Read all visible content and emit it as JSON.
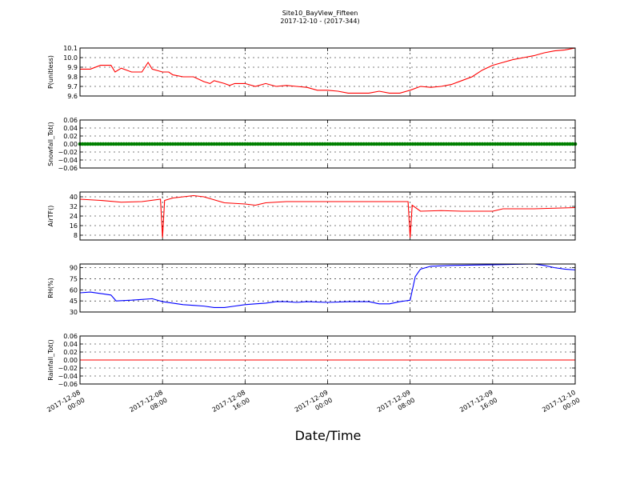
{
  "figure": {
    "title_line1": "Site10_BayView_Fifteen",
    "title_line2": "2017-12-10 - (2017-344)",
    "xlabel": "Date/Time"
  },
  "chart_data": [
    {
      "type": "line",
      "ylabel": "P(unitless)",
      "color": "#ff0000",
      "ylim": [
        9.6,
        10.1
      ],
      "yticks": [
        9.6,
        9.7,
        9.8,
        9.9,
        10.0,
        10.1
      ],
      "ytick_labels": [
        "9.6",
        "9.7",
        "9.8",
        "9.9",
        "10.0",
        "10.1"
      ],
      "points": [
        [
          0,
          9.88
        ],
        [
          1,
          9.88
        ],
        [
          2,
          9.92
        ],
        [
          3,
          9.92
        ],
        [
          3.4,
          9.85
        ],
        [
          4,
          9.89
        ],
        [
          5,
          9.85
        ],
        [
          6,
          9.85
        ],
        [
          6.6,
          9.95
        ],
        [
          7,
          9.88
        ],
        [
          8,
          9.85
        ],
        [
          8.6,
          9.85
        ],
        [
          9,
          9.82
        ],
        [
          10,
          9.8
        ],
        [
          11,
          9.8
        ],
        [
          12,
          9.75
        ],
        [
          12.6,
          9.73
        ],
        [
          13,
          9.76
        ],
        [
          14,
          9.73
        ],
        [
          14.5,
          9.71
        ],
        [
          15,
          9.73
        ],
        [
          16,
          9.73
        ],
        [
          17,
          9.7
        ],
        [
          18,
          9.73
        ],
        [
          19,
          9.7
        ],
        [
          20,
          9.71
        ],
        [
          21,
          9.7
        ],
        [
          22,
          9.69
        ],
        [
          23,
          9.66
        ],
        [
          24,
          9.66
        ],
        [
          25,
          9.65
        ],
        [
          26,
          9.63
        ],
        [
          27,
          9.63
        ],
        [
          28,
          9.63
        ],
        [
          29,
          9.65
        ],
        [
          30,
          9.63
        ],
        [
          31,
          9.63
        ],
        [
          32,
          9.66
        ],
        [
          33,
          9.7
        ],
        [
          34,
          9.69
        ],
        [
          35,
          9.7
        ],
        [
          36,
          9.72
        ],
        [
          37,
          9.76
        ],
        [
          38,
          9.8
        ],
        [
          39,
          9.87
        ],
        [
          40,
          9.92
        ],
        [
          41,
          9.95
        ],
        [
          42,
          9.98
        ],
        [
          43,
          10.0
        ],
        [
          44,
          10.02
        ],
        [
          45,
          10.05
        ],
        [
          46,
          10.07
        ],
        [
          47,
          10.08
        ],
        [
          48,
          10.1
        ]
      ]
    },
    {
      "type": "scatter",
      "ylabel": "Snowfall_Tot()",
      "color": "#008000",
      "ylim": [
        -0.06,
        0.06
      ],
      "yticks": [
        -0.06,
        -0.04,
        -0.02,
        0.0,
        0.02,
        0.04,
        0.06
      ],
      "ytick_labels": [
        "−0.06",
        "−0.04",
        "−0.02",
        "0.00",
        "0.02",
        "0.04",
        "0.06"
      ],
      "points": [
        [
          0,
          0
        ],
        [
          4,
          0
        ],
        [
          8,
          0
        ],
        [
          12,
          0
        ],
        [
          16,
          0
        ],
        [
          20,
          0
        ],
        [
          24,
          0
        ],
        [
          28,
          0
        ],
        [
          32,
          0
        ],
        [
          36,
          0
        ],
        [
          40,
          0
        ],
        [
          44,
          0
        ],
        [
          48,
          0
        ]
      ]
    },
    {
      "type": "line",
      "ylabel": "AirTF()",
      "color": "#ff0000",
      "ylim": [
        4,
        44
      ],
      "yticks": [
        8,
        16,
        24,
        32,
        40
      ],
      "ytick_labels": [
        "8",
        "16",
        "24",
        "32",
        "40"
      ],
      "points": [
        [
          0,
          38
        ],
        [
          2,
          37
        ],
        [
          4,
          35.5
        ],
        [
          6,
          36
        ],
        [
          7.8,
          38
        ],
        [
          8,
          6
        ],
        [
          8.2,
          37
        ],
        [
          9,
          39
        ],
        [
          10,
          40
        ],
        [
          11,
          41
        ],
        [
          12,
          40
        ],
        [
          14,
          35
        ],
        [
          16,
          34
        ],
        [
          17,
          33
        ],
        [
          18,
          35
        ],
        [
          20,
          36
        ],
        [
          24,
          36
        ],
        [
          28,
          36
        ],
        [
          31.8,
          36
        ],
        [
          32,
          6
        ],
        [
          32.2,
          33
        ],
        [
          33,
          28
        ],
        [
          35,
          28.5
        ],
        [
          37,
          28
        ],
        [
          40,
          28
        ],
        [
          41,
          30
        ],
        [
          44,
          30
        ],
        [
          48,
          31
        ]
      ]
    },
    {
      "type": "line",
      "ylabel": "RH(%)",
      "color": "#0000ff",
      "ylim": [
        30,
        95
      ],
      "yticks": [
        30,
        45,
        60,
        75,
        90
      ],
      "ytick_labels": [
        "30",
        "45",
        "60",
        "75",
        "90"
      ],
      "points": [
        [
          0,
          56
        ],
        [
          1,
          57
        ],
        [
          2,
          55
        ],
        [
          3,
          53
        ],
        [
          3.5,
          45
        ],
        [
          5,
          46
        ],
        [
          6,
          47
        ],
        [
          7,
          48
        ],
        [
          8,
          44
        ],
        [
          9,
          42
        ],
        [
          10,
          40
        ],
        [
          11,
          39
        ],
        [
          12,
          38
        ],
        [
          13,
          36
        ],
        [
          14,
          36
        ],
        [
          15,
          38
        ],
        [
          16,
          40
        ],
        [
          17,
          41
        ],
        [
          18,
          42
        ],
        [
          19,
          44
        ],
        [
          20,
          44
        ],
        [
          21,
          43
        ],
        [
          22,
          44
        ],
        [
          24,
          43
        ],
        [
          26,
          44
        ],
        [
          28,
          44
        ],
        [
          29,
          41
        ],
        [
          30,
          41
        ],
        [
          31,
          44
        ],
        [
          32,
          46
        ],
        [
          32.5,
          78
        ],
        [
          33,
          88
        ],
        [
          34,
          92
        ],
        [
          36,
          93
        ],
        [
          40,
          94
        ],
        [
          44,
          95
        ],
        [
          45,
          93
        ],
        [
          46,
          90
        ],
        [
          47,
          88
        ],
        [
          48,
          87
        ]
      ]
    },
    {
      "type": "line",
      "ylabel": "Rainfall_Tot()",
      "color": "#ff0000",
      "ylim": [
        -0.06,
        0.06
      ],
      "yticks": [
        -0.06,
        -0.04,
        -0.02,
        0.0,
        0.02,
        0.04,
        0.06
      ],
      "ytick_labels": [
        "−0.06",
        "−0.04",
        "−0.02",
        "0.00",
        "0.02",
        "0.04",
        "0.06"
      ],
      "points": [
        [
          0,
          0
        ],
        [
          48,
          0
        ]
      ]
    }
  ],
  "xaxis": {
    "range_hours": [
      0,
      48
    ],
    "ticks_hours": [
      0,
      8,
      16,
      24,
      32,
      40,
      48
    ],
    "tick_labels": [
      [
        "2017-12-08",
        "00:00"
      ],
      [
        "2017-12-08",
        "08:00"
      ],
      [
        "2017-12-08",
        "16:00"
      ],
      [
        "2017-12-09",
        "00:00"
      ],
      [
        "2017-12-09",
        "08:00"
      ],
      [
        "2017-12-09",
        "16:00"
      ],
      [
        "2017-12-10",
        "00:00"
      ]
    ]
  }
}
